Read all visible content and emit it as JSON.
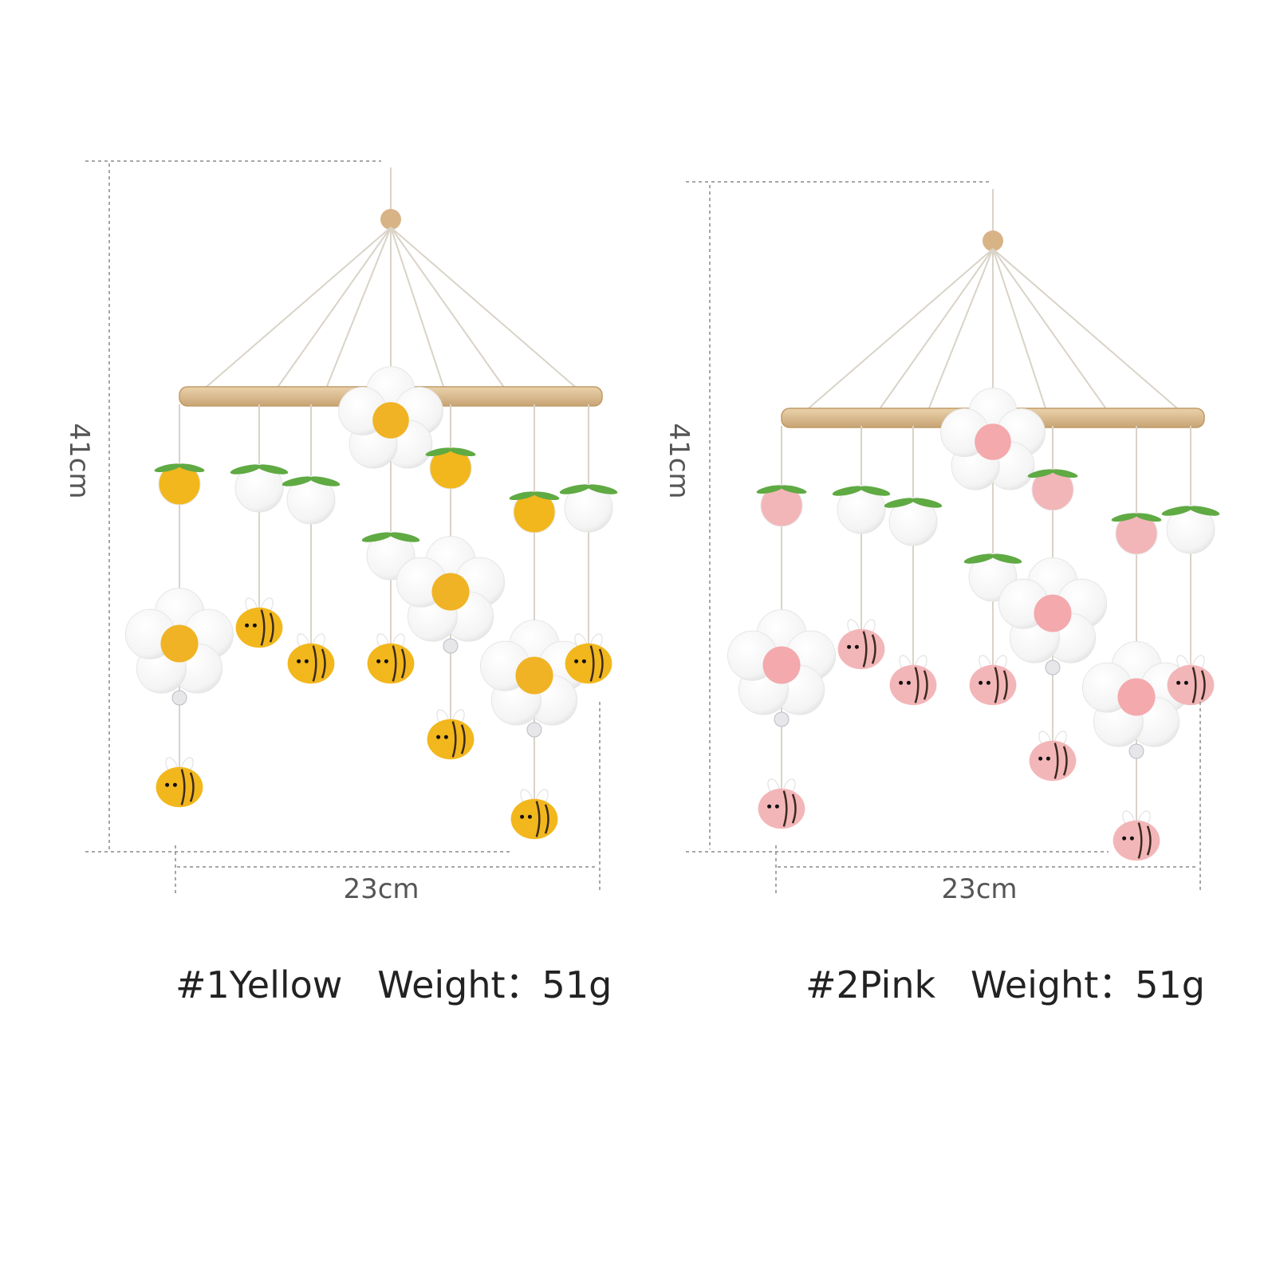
{
  "products": [
    {
      "caption": "#1Yellow   Weight：51g",
      "height_label": "41cm",
      "width_label": "23cm",
      "accent_color": "#f2b71c",
      "flower_center_color": "#f0b325"
    },
    {
      "caption": "#2Pink   Weight：51g",
      "height_label": "41cm",
      "width_label": "23cm",
      "accent_color": "#f3b6b8",
      "flower_center_color": "#f4a9ad"
    }
  ],
  "colors": {
    "hoop": "#dcbc8f",
    "string": "#d9d3c8",
    "leaf": "#5faa43",
    "felt_white": "#ffffff",
    "bee_stripe": "#3a2a20"
  }
}
